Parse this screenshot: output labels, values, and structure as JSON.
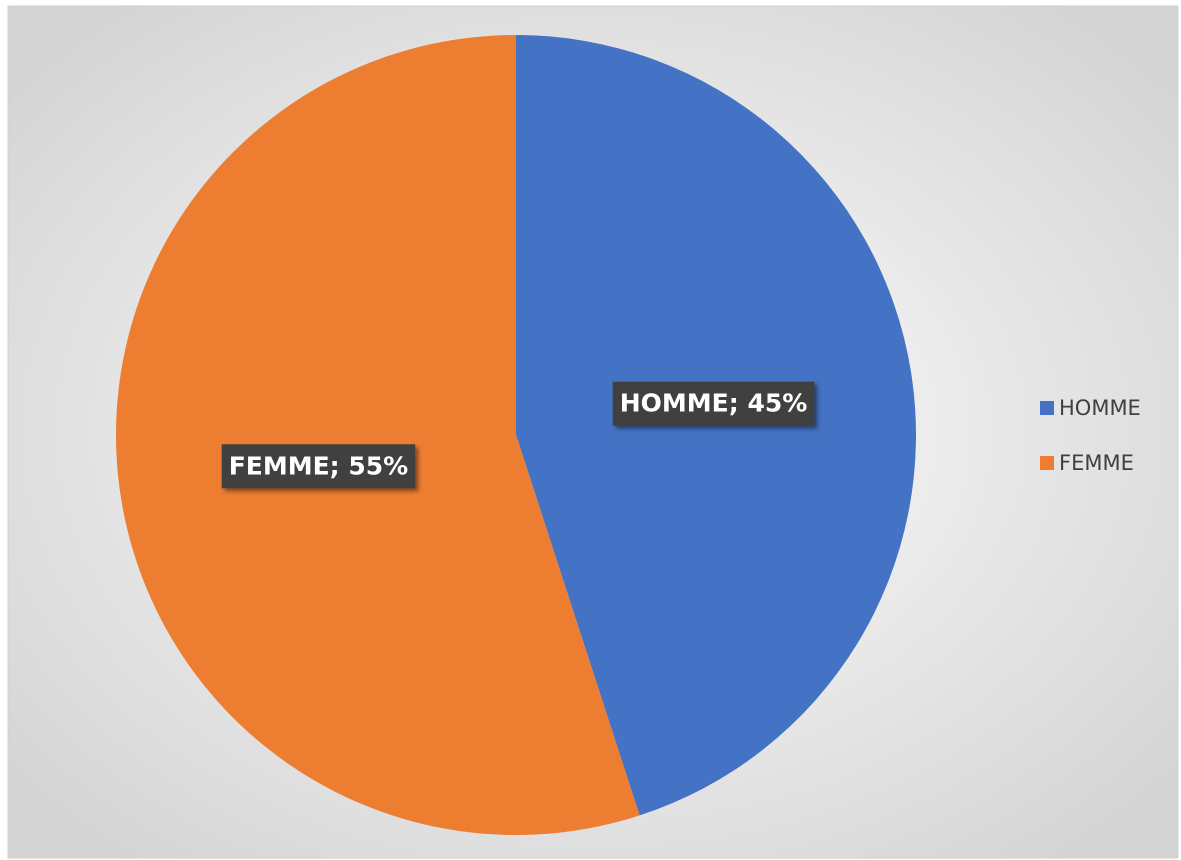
{
  "chart_data": {
    "type": "pie",
    "categories": [
      "HOMME",
      "FEMME"
    ],
    "values": [
      45,
      55
    ],
    "value_labels": [
      "HOMME; 45%",
      "FEMME; 55%"
    ],
    "colors": [
      "#4472c4",
      "#ed7d31"
    ],
    "legend": "right"
  }
}
